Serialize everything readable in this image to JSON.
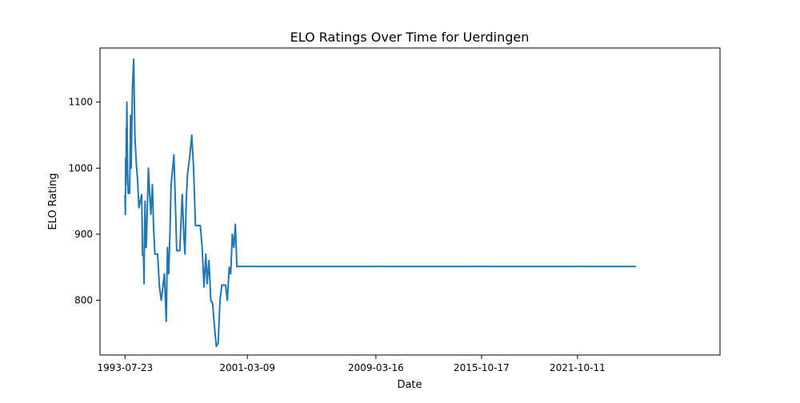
{
  "chart_data": {
    "type": "line",
    "title": "ELO Ratings Over Time for Uerdingen",
    "xlabel": "Date",
    "ylabel": "ELO Rating",
    "x_tick_labels": [
      "1993-07-23",
      "2001-03-09",
      "2009-03-16",
      "2015-10-17",
      "2021-10-11"
    ],
    "x_tick_dates": [
      "1993-07-23",
      "2001-03-09",
      "2009-03-16",
      "2015-10-17",
      "2021-10-11"
    ],
    "y_ticks": [
      800,
      900,
      1000,
      1100
    ],
    "xlim": [
      "1991-12-30",
      "2030-09-01"
    ],
    "ylim": [
      717,
      1182
    ],
    "grid": false,
    "legend": "none",
    "color": "#1f77b4",
    "x": [
      "1993-07-23",
      "1993-07-30",
      "1993-08-06",
      "1993-08-13",
      "1993-08-20",
      "1993-08-27",
      "1993-09-03",
      "1993-09-17",
      "1993-10-01",
      "1993-10-15",
      "1993-11-05",
      "1993-11-26",
      "1993-12-10",
      "1994-01-07",
      "1994-02-04",
      "1994-03-04",
      "1994-04-01",
      "1994-05-06",
      "1994-06-03",
      "1994-08-05",
      "1994-08-12",
      "1994-08-26",
      "1994-09-02",
      "1994-09-16",
      "1994-09-30",
      "1994-10-07",
      "1994-10-21",
      "1994-11-04",
      "1994-11-18",
      "1994-12-02",
      "1995-01-06",
      "1995-02-03",
      "1995-03-03",
      "1995-04-07",
      "1995-05-05",
      "1995-06-02",
      "1995-08-04",
      "1995-09-15",
      "1995-10-27",
      "1996-01-05",
      "1996-02-16",
      "1996-03-15",
      "1996-04-12",
      "1996-05-10",
      "1996-06-07",
      "1996-08-09",
      "1996-09-06",
      "1996-10-11",
      "1996-11-15",
      "1996-12-20",
      "1997-02-14",
      "1997-03-21",
      "1997-04-18",
      "1997-05-16",
      "1997-06-13",
      "1997-08-08",
      "1997-09-19",
      "1997-10-31",
      "1997-12-12",
      "1998-02-20",
      "1998-04-03",
      "1998-05-15",
      "1998-06-26",
      "1998-08-07",
      "1998-09-04",
      "1998-10-16",
      "1998-11-27",
      "1999-01-08",
      "1999-02-19",
      "1999-04-02",
      "1999-05-14",
      "1999-06-25",
      "1999-08-06",
      "1999-09-17",
      "1999-10-29",
      "1999-12-10",
      "2000-01-21",
      "2000-02-25",
      "2000-03-31",
      "2000-05-05",
      "2000-06-09",
      "2000-07-14",
      "2000-08-18",
      "2000-09-22",
      "2000-10-27",
      "2000-11-24",
      "2001-01-05",
      "2001-02-09",
      "2001-03-09",
      "2009-03-16",
      "2015-10-17",
      "2021-10-11",
      "2025-05-17"
    ],
    "values": [
      958,
      930,
      1015,
      975,
      1060,
      1040,
      1100,
      1000,
      962,
      962,
      962,
      1080,
      1000,
      1120,
      1165,
      1050,
      1010,
      980,
      940,
      960,
      930,
      868,
      868,
      868,
      825,
      890,
      950,
      880,
      880,
      915,
      1000,
      960,
      930,
      975,
      910,
      870,
      870,
      820,
      800,
      840,
      768,
      880,
      840,
      900,
      975,
      1020,
      960,
      875,
      875,
      875,
      960,
      900,
      870,
      950,
      990,
      1020,
      1050,
      1000,
      913,
      913,
      913,
      880,
      820,
      870,
      825,
      860,
      800,
      795,
      760,
      730,
      735,
      800,
      823,
      823,
      823,
      800,
      850,
      840,
      900,
      880,
      915,
      851,
      851,
      851,
      851,
      851,
      851,
      851,
      851,
      851,
      851,
      851,
      851
    ]
  }
}
